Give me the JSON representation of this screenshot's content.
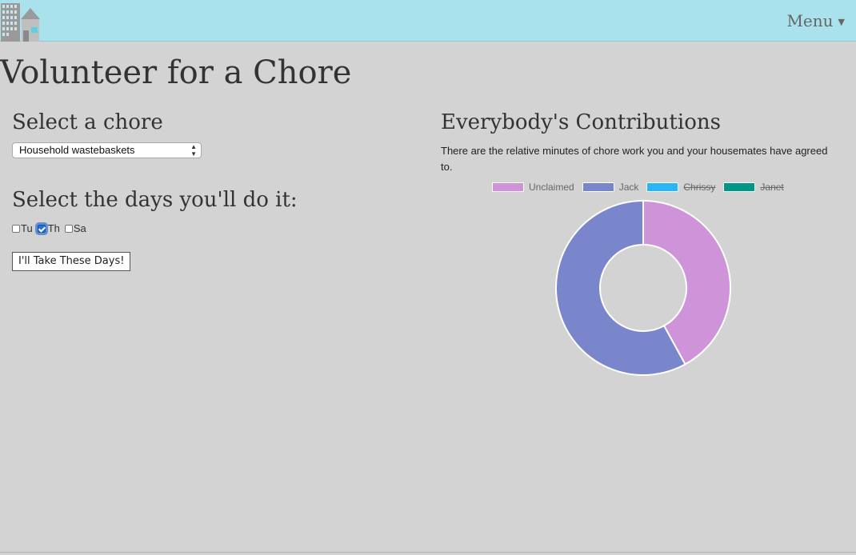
{
  "navbar": {
    "menu_label": "Menu",
    "menu_caret_icon": "caret-down-icon",
    "logo_icon": "house-building-logo-icon"
  },
  "page": {
    "title": "Volunteer for a Chore"
  },
  "chore": {
    "heading": "Select a chore",
    "selected": "Household wastebaskets",
    "arrows": "▲▼"
  },
  "days": {
    "heading": "Select the days you'll do it:",
    "items": [
      {
        "label": "Tu",
        "checked": false
      },
      {
        "label": "Th",
        "checked": true
      },
      {
        "label": "Sa",
        "checked": false
      }
    ],
    "submit_label": "I'll Take These Days!"
  },
  "contributions": {
    "heading": "Everybody's Contributions",
    "description": "There are the relative minutes of chore work you and your housemates have agreed to."
  },
  "colors": {
    "navbar_bg": "#a9e2ec",
    "page_bg": "#d3d3d3",
    "unclaimed": "#ce93d8",
    "jack": "#7986cb",
    "chrissy": "#29b6f6",
    "janet": "#009688"
  },
  "chart_data": {
    "type": "pie",
    "style": "doughnut",
    "legend_placement": "top",
    "series": [
      {
        "name": "Unclaimed",
        "value": 42,
        "color": "#ce93d8",
        "hidden": false
      },
      {
        "name": "Jack",
        "value": 58,
        "color": "#7986cb",
        "hidden": false
      },
      {
        "name": "Chrissy",
        "value": 0,
        "color": "#29b6f6",
        "hidden": true
      },
      {
        "name": "Janet",
        "value": 0,
        "color": "#009688",
        "hidden": true
      }
    ]
  }
}
